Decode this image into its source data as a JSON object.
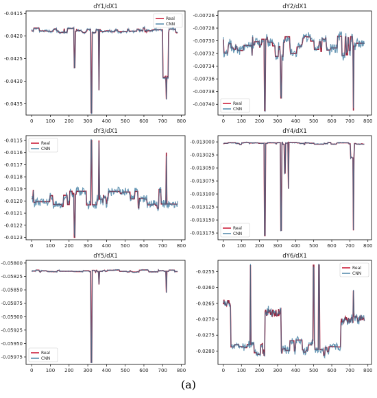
{
  "figure": {
    "caption": "(a)"
  },
  "colors": {
    "real": "#c8102e",
    "cnn": "#4d86a8",
    "blend": "#4a4a5c",
    "axis": "#000000"
  },
  "chart_data": [
    {
      "type": "line",
      "title": "dY1/dX1",
      "legend": "top-right",
      "xlim": [
        -30,
        820
      ],
      "ylim": [
        -0.04375,
        -0.04145
      ],
      "xticks": [
        0,
        100,
        200,
        300,
        400,
        500,
        600,
        700,
        800
      ],
      "yticks": [
        -0.0415,
        -0.042,
        -0.0425,
        -0.043,
        -0.0435
      ],
      "ytick_labels": [
        "-0.0415",
        "-0.0420",
        "-0.0425",
        "-0.0430",
        "-0.0435"
      ],
      "baseline": -0.04188,
      "noise_amp": 6e-05,
      "spikes": [
        [
          230,
          -0.0427
        ],
        [
          320,
          -0.0437
        ],
        [
          360,
          -0.0432
        ],
        [
          720,
          -0.0434
        ]
      ],
      "plateaus": [
        [
          700,
          730,
          -0.0429
        ]
      ],
      "series": [
        {
          "name": "Real",
          "values_shape": "actual"
        },
        {
          "name": "CNN",
          "values_shape": "predicted"
        }
      ]
    },
    {
      "type": "line",
      "title": "dY2/dX1",
      "legend": "bottom-left",
      "xlim": [
        -30,
        820
      ],
      "ylim": [
        -0.007417,
        -0.007253
      ],
      "xticks": [
        0,
        100,
        200,
        300,
        400,
        500,
        600,
        700,
        800
      ],
      "yticks": [
        -0.00726,
        -0.00728,
        -0.0073,
        -0.00732,
        -0.00734,
        -0.00736,
        -0.00738,
        -0.0074
      ],
      "ytick_labels": [
        "-0.00726",
        "-0.00728",
        "-0.00730",
        "-0.00732",
        "-0.00734",
        "-0.00736",
        "-0.00738",
        "-0.00740"
      ],
      "baseline": -0.00731,
      "noise_amp": 1.8e-05,
      "spikes": [
        [
          230,
          -0.00741
        ],
        [
          320,
          -0.00739
        ],
        [
          720,
          -0.00741
        ]
      ],
      "plateaus": [],
      "series": [
        {
          "name": "Real",
          "values_shape": "actual"
        },
        {
          "name": "CNN",
          "values_shape": "predicted"
        }
      ]
    },
    {
      "type": "line",
      "title": "dY3/dX1",
      "legend": "top-left",
      "xlim": [
        -30,
        820
      ],
      "ylim": [
        -0.01232,
        -0.01146
      ],
      "xticks": [
        0,
        100,
        200,
        300,
        400,
        500,
        600,
        700,
        800
      ],
      "yticks": [
        -0.0115,
        -0.0116,
        -0.0117,
        -0.0118,
        -0.0119,
        -0.012,
        -0.0121,
        -0.0122,
        -0.0123
      ],
      "ytick_labels": [
        "-0.0115",
        "-0.0116",
        "-0.0117",
        "-0.0118",
        "-0.0119",
        "-0.0120",
        "-0.0121",
        "-0.0122",
        "-0.0123"
      ],
      "baseline": -0.01198,
      "noise_amp": 8e-05,
      "spikes": [
        [
          320,
          -0.0115
        ],
        [
          360,
          -0.0115
        ],
        [
          230,
          -0.0123
        ],
        [
          720,
          -0.0116
        ]
      ],
      "plateaus": [],
      "series": [
        {
          "name": "Real",
          "values_shape": "actual"
        },
        {
          "name": "CNN",
          "values_shape": "predicted"
        }
      ]
    },
    {
      "type": "line",
      "title": "dY4/dX1",
      "legend": "bottom-left",
      "xlim": [
        -30,
        820
      ],
      "ylim": [
        -0.013188,
        -0.012988
      ],
      "xticks": [
        0,
        100,
        200,
        300,
        400,
        500,
        600,
        700,
        800
      ],
      "yticks": [
        -0.013,
        -0.013025,
        -0.01305,
        -0.013075,
        -0.0131,
        -0.013125,
        -0.01315,
        -0.013175
      ],
      "ytick_labels": [
        "-0.013000",
        "-0.013025",
        "-0.013050",
        "-0.013075",
        "-0.013100",
        "-0.013125",
        "-0.013150",
        "-0.013175"
      ],
      "baseline": -0.013003,
      "noise_amp": 2e-06,
      "spikes": [
        [
          230,
          -0.01318
        ],
        [
          320,
          -0.01317
        ],
        [
          340,
          -0.01306
        ],
        [
          360,
          -0.01309
        ],
        [
          720,
          -0.01317
        ]
      ],
      "plateaus": [
        [
          705,
          725,
          -0.01303
        ]
      ],
      "series": [
        {
          "name": "Real",
          "values_shape": "actual"
        },
        {
          "name": "CNN",
          "values_shape": "predicted"
        }
      ]
    },
    {
      "type": "line",
      "title": "dY5/dX1",
      "legend": "bottom-left",
      "xlim": [
        -30,
        820
      ],
      "ylim": [
        -0.05989,
        -0.05795
      ],
      "xticks": [
        0,
        100,
        200,
        300,
        400,
        500,
        600,
        700,
        800
      ],
      "yticks": [
        -0.058,
        -0.05825,
        -0.0585,
        -0.05875,
        -0.059,
        -0.05925,
        -0.0595,
        -0.05975
      ],
      "ytick_labels": [
        "-0.05800",
        "-0.05825",
        "-0.05850",
        "-0.05875",
        "-0.05900",
        "-0.05925",
        "-0.05950",
        "-0.05975"
      ],
      "baseline": -0.05815,
      "noise_amp": 2e-05,
      "spikes": [
        [
          320,
          -0.05985
        ],
        [
          360,
          -0.0584
        ],
        [
          720,
          -0.05855
        ]
      ],
      "plateaus": [],
      "series": [
        {
          "name": "Real",
          "values_shape": "actual"
        },
        {
          "name": "CNN",
          "values_shape": "predicted"
        }
      ]
    },
    {
      "type": "line",
      "title": "dY6/dX1",
      "legend": "top-right",
      "xlim": [
        -30,
        820
      ],
      "ylim": [
        -0.02842,
        -0.02515
      ],
      "xticks": [
        0,
        100,
        200,
        300,
        400,
        500,
        600,
        700,
        800
      ],
      "yticks": [
        -0.0255,
        -0.026,
        -0.0265,
        -0.027,
        -0.0275,
        -0.028
      ],
      "ytick_labels": [
        "-0.0255",
        "-0.0260",
        "-0.0265",
        "-0.0270",
        "-0.0275",
        "-0.0280"
      ],
      "baseline": -0.0279,
      "noise_amp": 0.00025,
      "spikes": [
        [
          150,
          -0.0253
        ],
        [
          500,
          -0.0253
        ],
        [
          530,
          -0.0253
        ],
        [
          720,
          -0.0261
        ]
      ],
      "plateaus": [
        [
          0,
          40,
          -0.0265
        ],
        [
          230,
          320,
          -0.0268
        ],
        [
          650,
          780,
          -0.027
        ]
      ],
      "series": [
        {
          "name": "Real",
          "values_shape": "actual"
        },
        {
          "name": "CNN",
          "values_shape": "predicted"
        }
      ]
    }
  ]
}
